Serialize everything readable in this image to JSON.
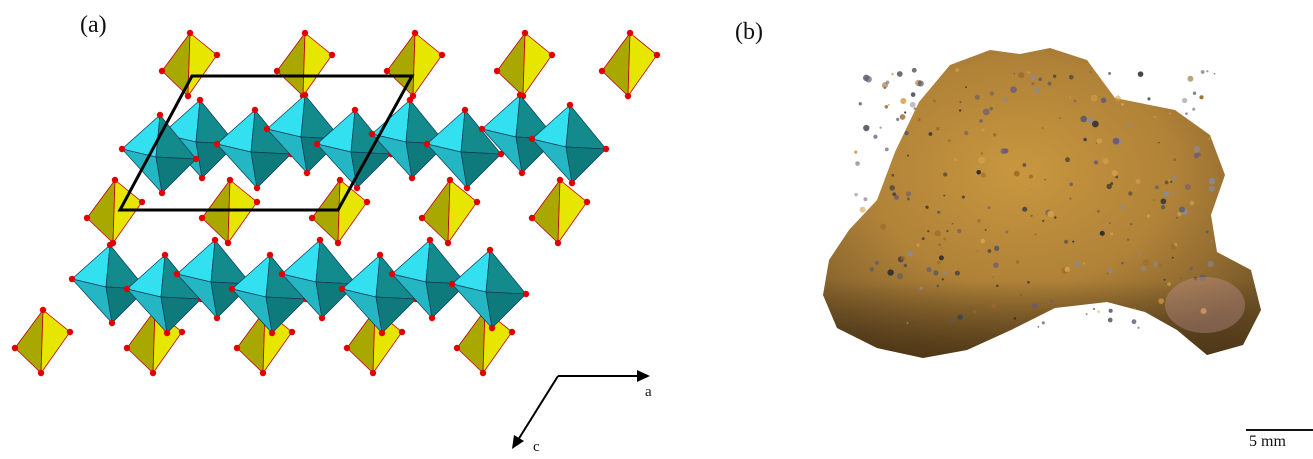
{
  "figure": {
    "panel_a_label": "(a)",
    "panel_b_label": "(b)",
    "axis_a": "a",
    "axis_c": "c",
    "scale_bar_label": "5 mm"
  },
  "colors": {
    "tetrahedra": "#e6e600",
    "tetrahedra_dark": "#a8a800",
    "octahedra_light": "#33e0f0",
    "octahedra_dark": "#138a8c",
    "oxygen_atoms": "#e00000",
    "unit_cell": "#000000",
    "mineral_body": "#b08238"
  }
}
